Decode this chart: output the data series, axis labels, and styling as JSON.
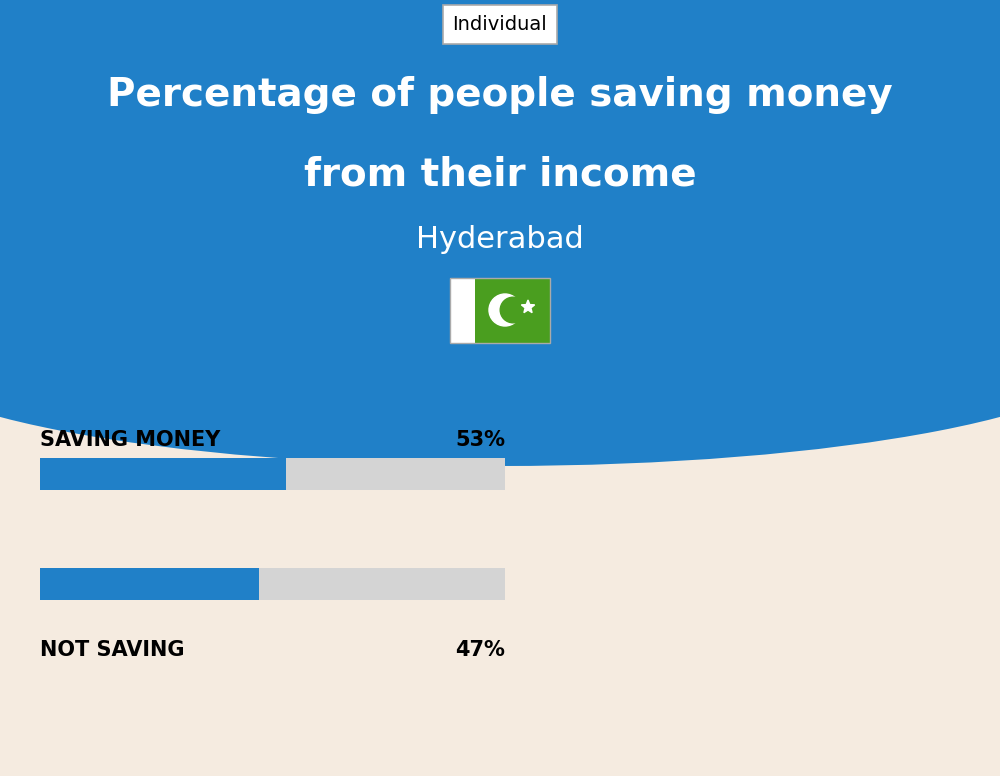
{
  "title_line1": "Percentage of people saving money",
  "title_line2": "from their income",
  "subtitle": "Hyderabad",
  "tab_label": "Individual",
  "bg_top_color": "#2080c8",
  "bg_bottom_color": "#f5ebe0",
  "bar_color": "#2080c8",
  "bar_bg_color": "#d4d4d4",
  "categories": [
    "SAVING MONEY",
    "NOT SAVING"
  ],
  "values": [
    53,
    47
  ],
  "label_color": "#000000",
  "title_color": "#ffffff",
  "subtitle_color": "#ffffff",
  "tab_bg": "#ffffff",
  "tab_text_color": "#000000",
  "fig_width": 10.0,
  "fig_height": 7.76,
  "dpi": 100
}
